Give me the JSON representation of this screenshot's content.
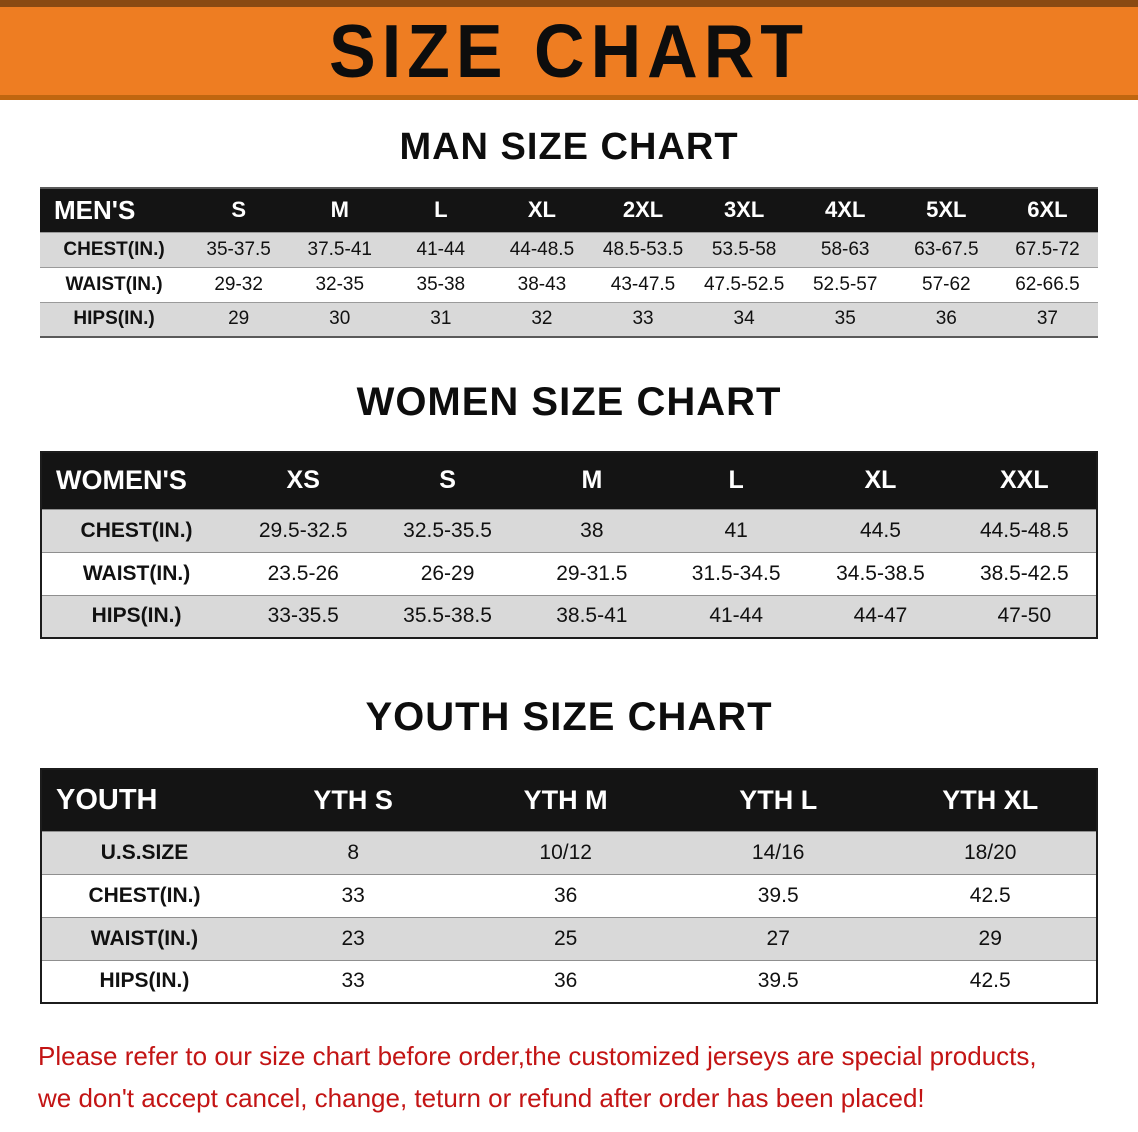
{
  "banner": {
    "title": "SIZE CHART"
  },
  "sections": [
    {
      "id": "men",
      "heading": "MAN SIZE CHART",
      "table": {
        "label_header": "MEN'S",
        "size_headers": [
          "S",
          "M",
          "L",
          "XL",
          "2XL",
          "3XL",
          "4XL",
          "5XL",
          "6XL"
        ],
        "rows": [
          {
            "label": "CHEST(IN.)",
            "values": [
              "35-37.5",
              "37.5-41",
              "41-44",
              "44-48.5",
              "48.5-53.5",
              "53.5-58",
              "58-63",
              "63-67.5",
              "67.5-72"
            ]
          },
          {
            "label": "WAIST(IN.)",
            "values": [
              "29-32",
              "32-35",
              "35-38",
              "38-43",
              "43-47.5",
              "47.5-52.5",
              "52.5-57",
              "57-62",
              "62-66.5"
            ]
          },
          {
            "label": "HIPS(IN.)",
            "values": [
              "29",
              "30",
              "31",
              "32",
              "33",
              "34",
              "35",
              "36",
              "37"
            ]
          }
        ]
      }
    },
    {
      "id": "women",
      "heading": "WOMEN SIZE CHART",
      "table": {
        "label_header": "WOMEN'S",
        "size_headers": [
          "XS",
          "S",
          "M",
          "L",
          "XL",
          "XXL"
        ],
        "rows": [
          {
            "label": "CHEST(IN.)",
            "values": [
              "29.5-32.5",
              "32.5-35.5",
              "38",
              "41",
              "44.5",
              "44.5-48.5"
            ]
          },
          {
            "label": "WAIST(IN.)",
            "values": [
              "23.5-26",
              "26-29",
              "29-31.5",
              "31.5-34.5",
              "34.5-38.5",
              "38.5-42.5"
            ]
          },
          {
            "label": "HIPS(IN.)",
            "values": [
              "33-35.5",
              "35.5-38.5",
              "38.5-41",
              "41-44",
              "44-47",
              "47-50"
            ]
          }
        ]
      }
    },
    {
      "id": "youth",
      "heading": "YOUTH SIZE CHART",
      "table": {
        "label_header": "YOUTH",
        "size_headers": [
          "YTH S",
          "YTH M",
          "YTH L",
          "YTH XL"
        ],
        "rows": [
          {
            "label": "U.S.SIZE",
            "values": [
              "8",
              "10/12",
              "14/16",
              "18/20"
            ]
          },
          {
            "label": "CHEST(IN.)",
            "values": [
              "33",
              "36",
              "39.5",
              "42.5"
            ]
          },
          {
            "label": "WAIST(IN.)",
            "values": [
              "23",
              "25",
              "27",
              "29"
            ]
          },
          {
            "label": "HIPS(IN.)",
            "values": [
              "33",
              "36",
              "39.5",
              "42.5"
            ]
          }
        ]
      }
    }
  ],
  "footer": {
    "line1": "Please refer to our size chart before order,the customized jerseys are special products,",
    "line2": "we don't accept cancel, change, teturn or refund after order has been placed!"
  },
  "colors": {
    "banner_orange": "#ee7d22",
    "table_header_black": "#141414",
    "shaded_row_gray": "#d9d9d9",
    "notice_red": "#c31414"
  }
}
